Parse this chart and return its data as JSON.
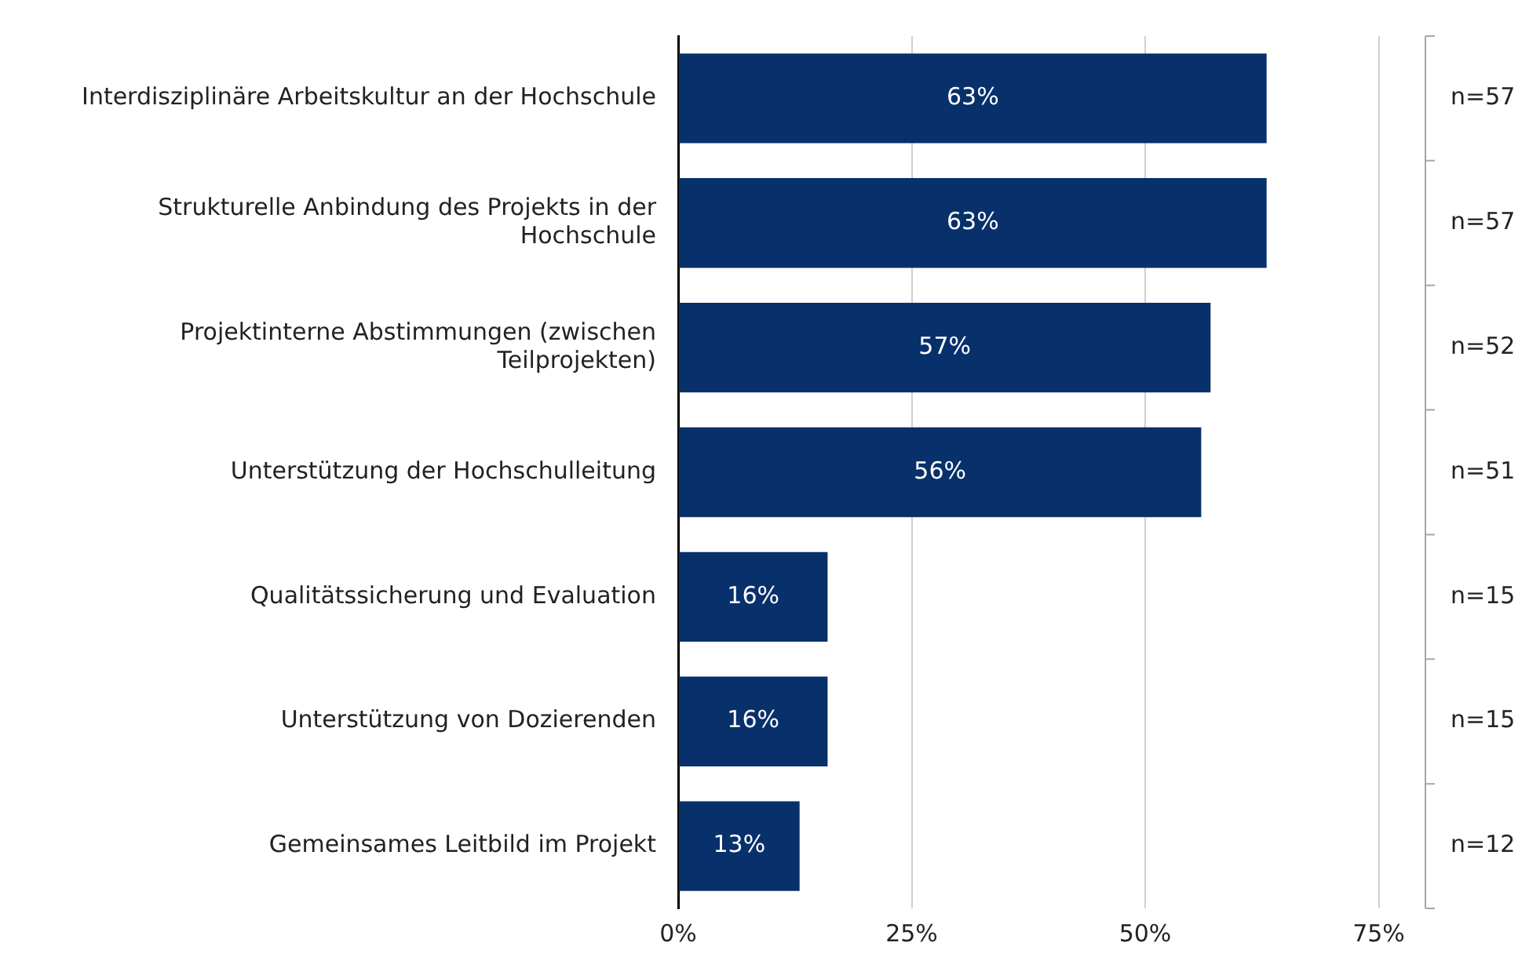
{
  "chart_data": {
    "type": "bar",
    "orientation": "horizontal",
    "categories": [
      "Interdisziplinäre Arbeitskultur an der Hochschule",
      "Strukturelle Anbindung des Projekts in der Hochschule",
      "Projektinterne Abstimmungen (zwischen Teilprojekten)",
      "Unterstützung der Hochschulleitung",
      "Qualitätssicherung und Evaluation",
      "Unterstützung von Dozierenden",
      "Gemeinsames Leitbild im Projekt"
    ],
    "values": [
      63,
      63,
      57,
      56,
      16,
      16,
      13
    ],
    "value_labels": [
      "63%",
      "63%",
      "57%",
      "56%",
      "16%",
      "16%",
      "13%"
    ],
    "color": "#08306b",
    "xlim": [
      0,
      80
    ],
    "xticks": [
      {
        "value": 0,
        "label": "0%"
      },
      {
        "value": 25,
        "label": "25%"
      },
      {
        "value": 50,
        "label": "50%"
      },
      {
        "value": 75,
        "label": "75%"
      }
    ],
    "grid": "x",
    "legend": false,
    "annotations": [
      "n=57",
      "n=57",
      "n=52",
      "n=51",
      "n=15",
      "n=15",
      "n=12"
    ]
  }
}
